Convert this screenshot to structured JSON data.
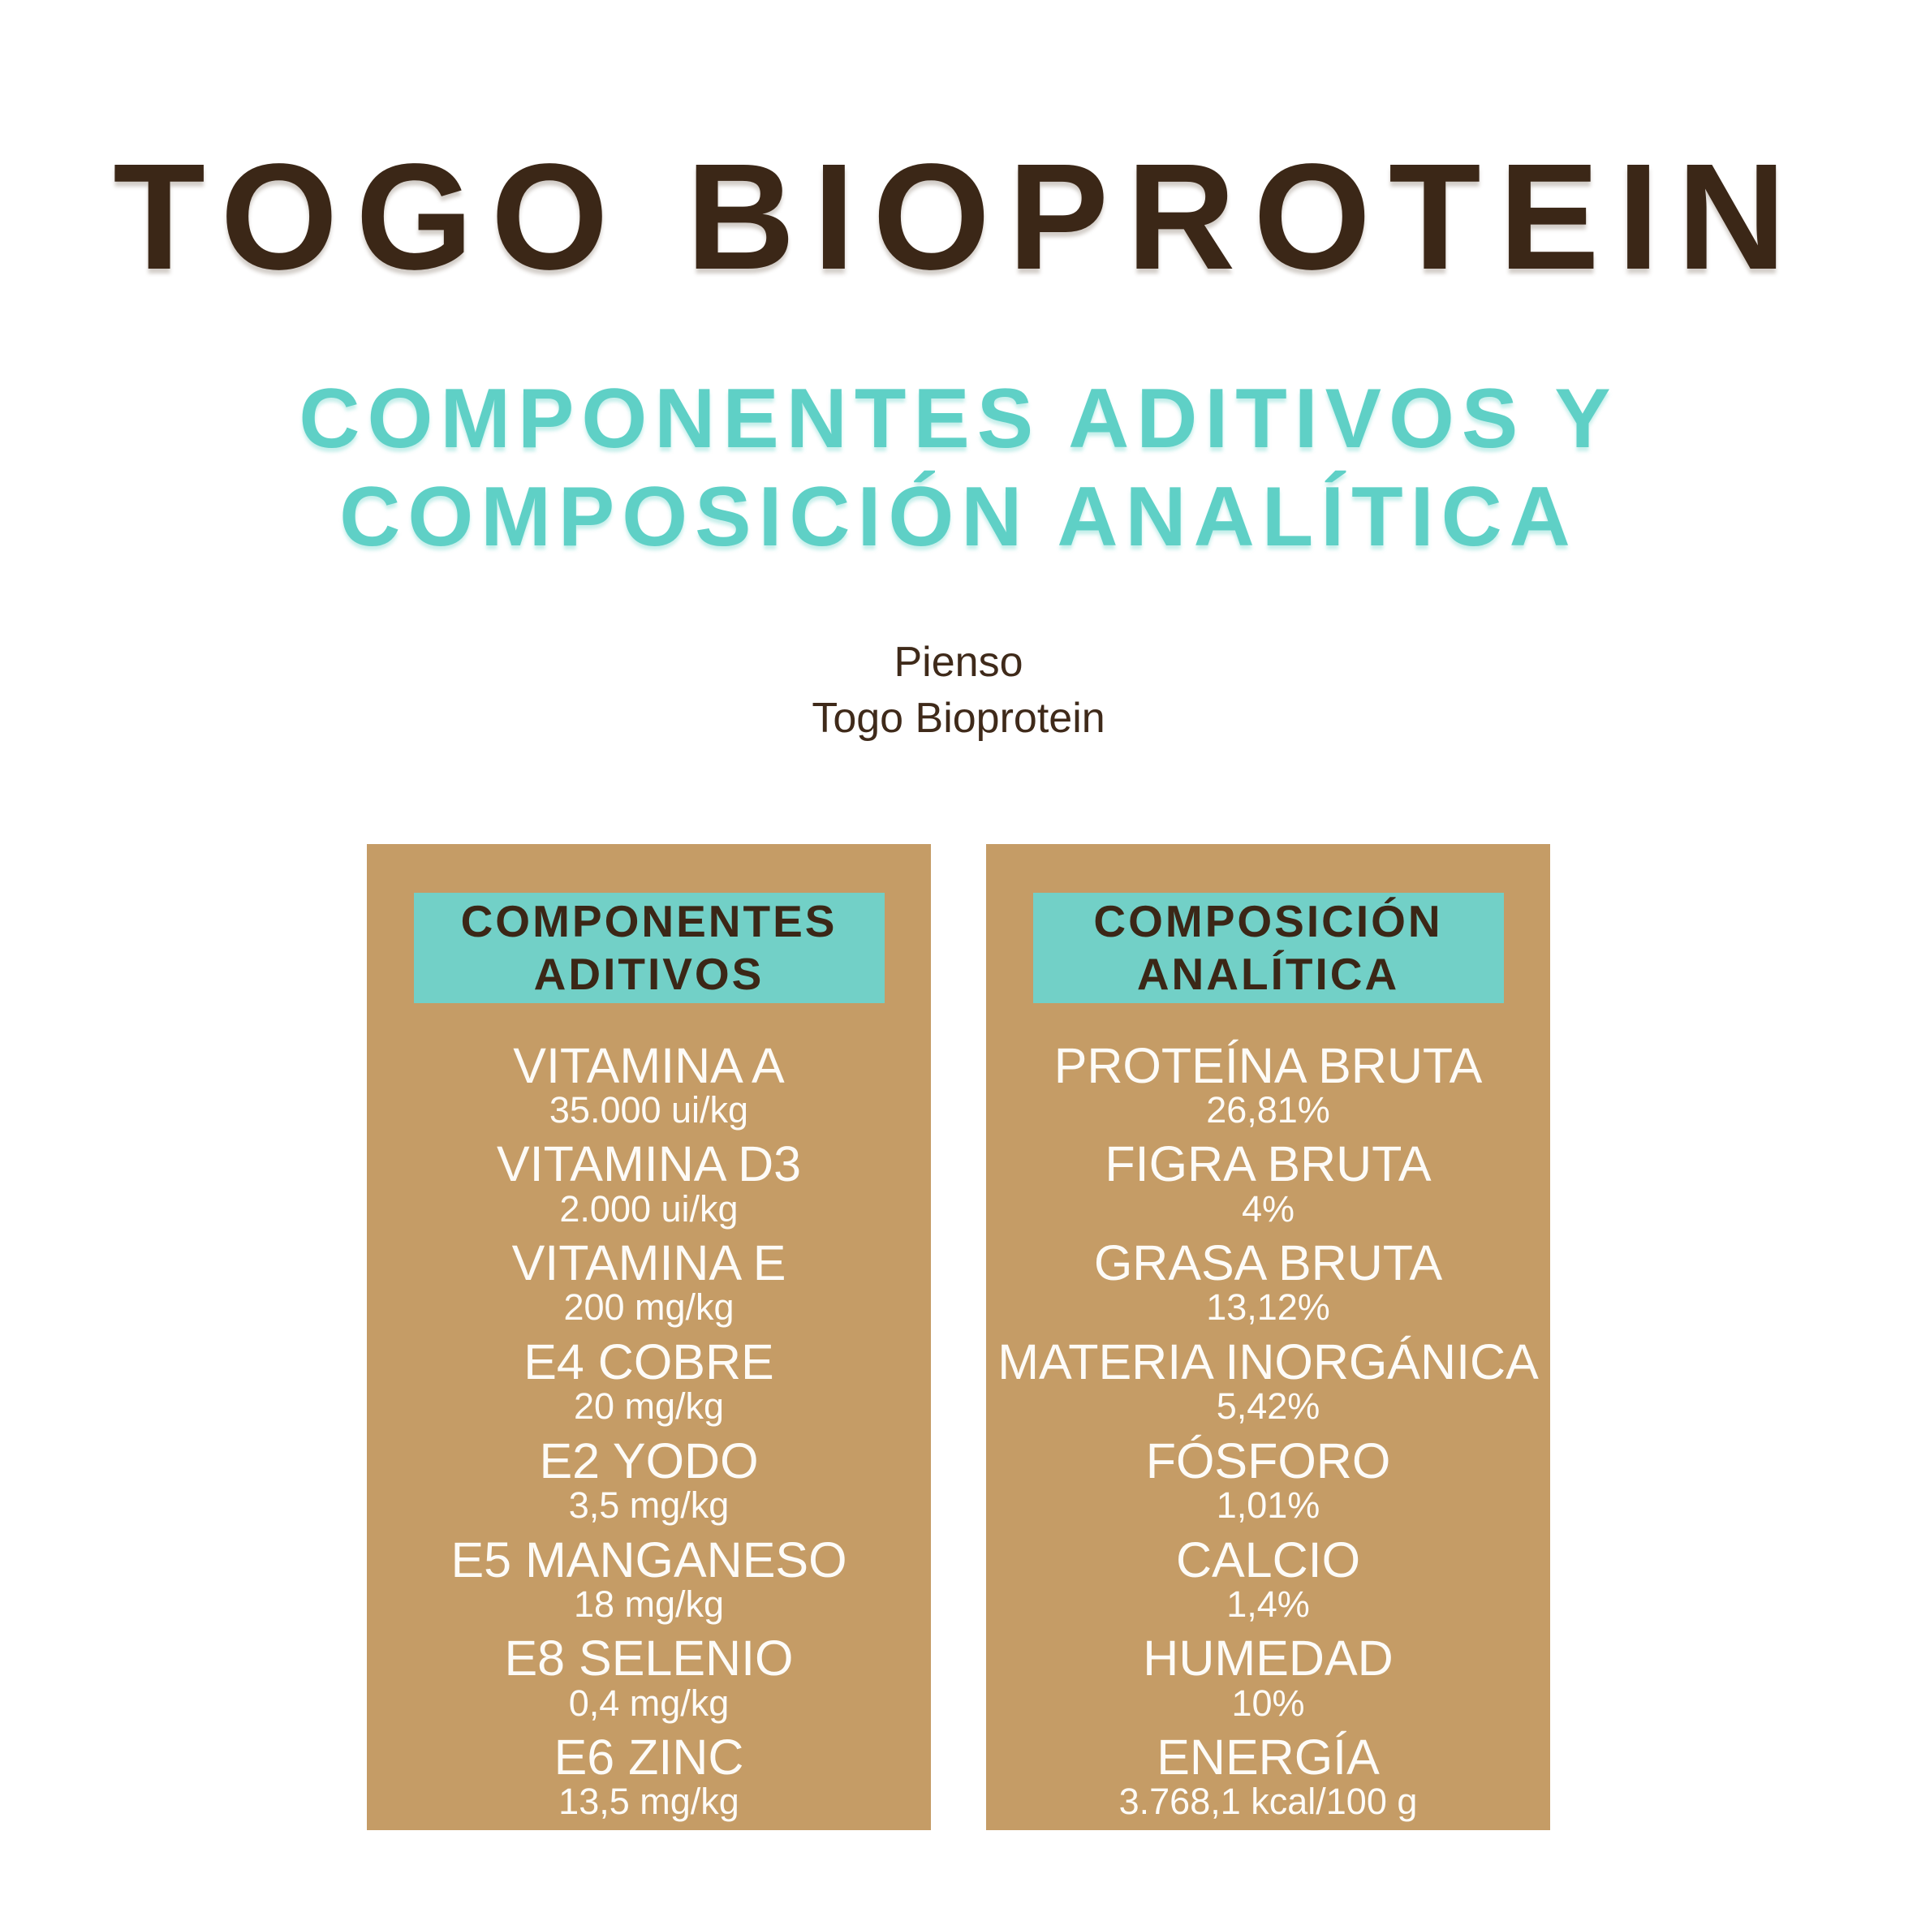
{
  "page": {
    "title": "TOGO BIOPROTEIN",
    "subtitle_line1": "COMPONENTES ADITIVOS Y",
    "subtitle_line2": "COMPOSICIÓN ANALÍTICA",
    "product_line1": "Pienso",
    "product_line2": "Togo Bioprotein"
  },
  "colors": {
    "title_brown": "#3b2717",
    "subtitle_teal": "#5fd0c6",
    "panel_tan": "#c59c66",
    "header_box_teal": "#72d0c7",
    "list_text_white": "#fdfbf7"
  },
  "panels": [
    {
      "header_line1": "COMPONENTES",
      "header_line2": "ADITIVOS",
      "items": [
        {
          "name": "VITAMINA A",
          "value": "35.000 ui/kg"
        },
        {
          "name": "VITAMINA D3",
          "value": "2.000 ui/kg"
        },
        {
          "name": "VITAMINA E",
          "value": "200 mg/kg"
        },
        {
          "name": "E4 COBRE",
          "value": "20 mg/kg"
        },
        {
          "name": "E2 YODO",
          "value": "3,5 mg/kg"
        },
        {
          "name": "E5 MANGANESO",
          "value": "18 mg/kg"
        },
        {
          "name": "E8 SELENIO",
          "value": "0,4 mg/kg"
        },
        {
          "name": "E6 ZINC",
          "value": "13,5 mg/kg"
        }
      ]
    },
    {
      "header_line1": "COMPOSICIÓN",
      "header_line2": "ANALÍTICA",
      "items": [
        {
          "name": "PROTEÍNA BRUTA",
          "value": "26,81%"
        },
        {
          "name": "FIGRA BRUTA",
          "value": "4%"
        },
        {
          "name": "GRASA BRUTA",
          "value": "13,12%"
        },
        {
          "name": "MATERIA INORGÁNICA",
          "value": "5,42%"
        },
        {
          "name": "FÓSFORO",
          "value": "1,01%"
        },
        {
          "name": "CALCIO",
          "value": "1,4%"
        },
        {
          "name": "HUMEDAD",
          "value": "10%"
        },
        {
          "name": "ENERGÍA",
          "value": "3.768,1 kcal/100 g"
        }
      ]
    }
  ]
}
